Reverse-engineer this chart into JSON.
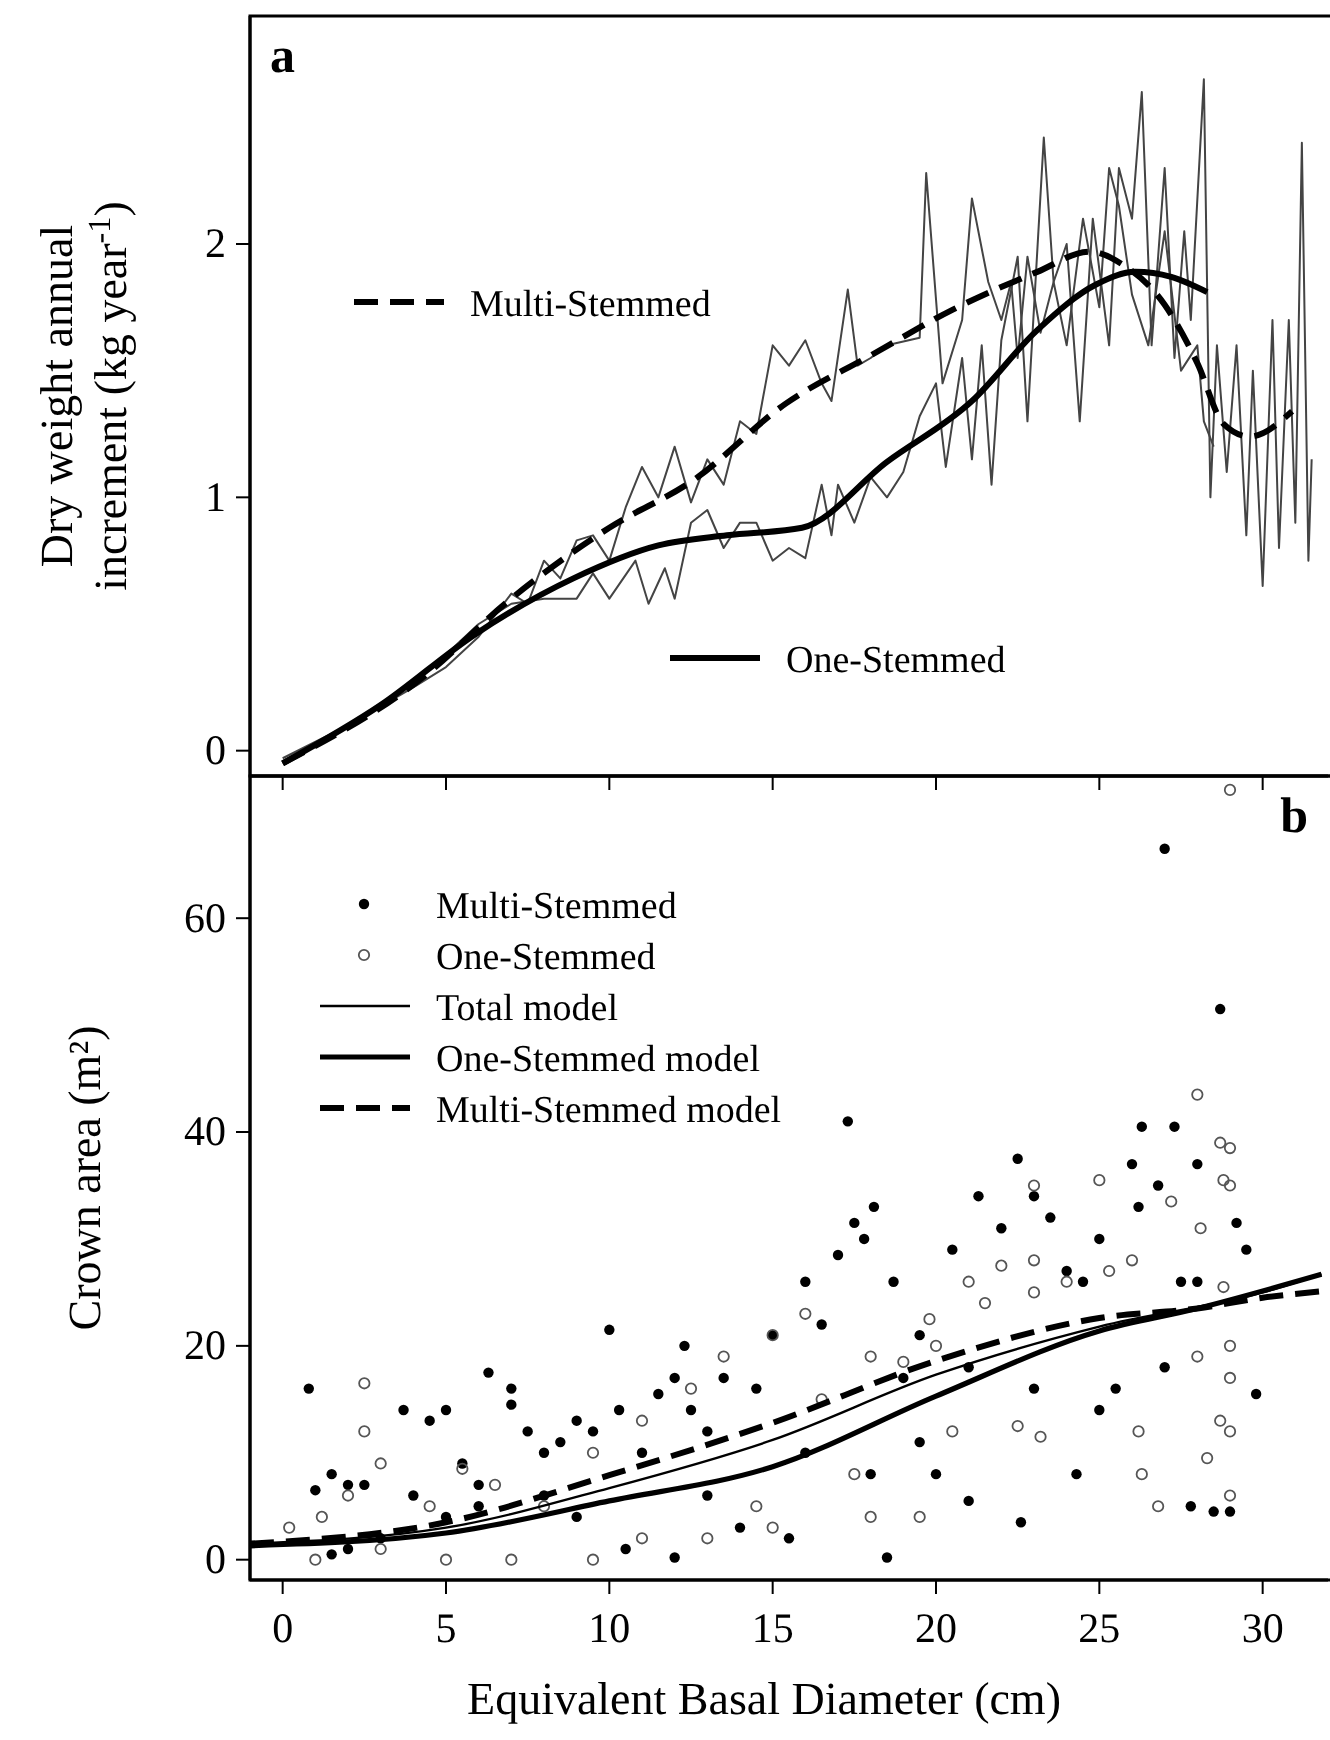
{
  "chart_data": [
    {
      "type": "line",
      "title": "a",
      "ylabel": "Dry weight annual\nincrement (kg  year$^{-1}$)",
      "xlim": [
        -1,
        32
      ],
      "ylim": [
        -0.1,
        2.9
      ],
      "xticks": [
        0,
        5,
        10,
        15,
        20,
        25,
        30
      ],
      "yticks": [
        0,
        1,
        2
      ],
      "tick_labels": "y",
      "grid": false,
      "legend": "left",
      "series": [
        {
          "color": "#444444",
          "x": [
            0,
            2,
            4,
            5,
            6,
            7,
            7.5,
            8,
            8.5,
            9,
            9.5,
            10,
            10.5,
            11,
            11.5,
            12,
            12.5,
            13,
            13.5,
            14,
            14.5,
            15,
            15.5,
            16,
            16.5,
            16.8,
            17.3,
            17.6,
            18,
            18.5,
            19.5,
            19.7,
            20.2,
            20.8,
            21.1,
            21.6,
            22,
            22.3,
            22.5,
            22.8,
            23.2,
            23.6,
            24,
            24.5,
            25,
            25.3,
            25.6,
            26,
            26.5,
            27,
            27.5,
            28,
            28.2,
            28.5
          ],
          "values": [
            -0.03,
            0.1,
            0.25,
            0.33,
            0.45,
            0.62,
            0.58,
            0.75,
            0.68,
            0.83,
            0.85,
            0.75,
            0.96,
            1.12,
            1.0,
            1.2,
            0.98,
            1.15,
            1.05,
            1.3,
            1.25,
            1.6,
            1.52,
            1.62,
            1.45,
            1.38,
            1.82,
            1.52,
            1.55,
            1.6,
            1.63,
            2.28,
            1.45,
            1.7,
            2.18,
            1.85,
            1.7,
            1.85,
            1.55,
            1.95,
            1.65,
            1.85,
            1.6,
            2.1,
            1.75,
            2.3,
            2.15,
            1.8,
            1.6,
            2.05,
            1.5,
            1.6,
            1.3,
            1.2
          ]
        },
        {
          "color": "#444444",
          "x": [
            0,
            2,
            4,
            5,
            6,
            7,
            8,
            9,
            9.5,
            10,
            10.8,
            11.2,
            11.7,
            12,
            12.5,
            13,
            13.5,
            14,
            14.5,
            15,
            15.5,
            16,
            16.5,
            16.8,
            17,
            17.5,
            18,
            18.5,
            19,
            19.5,
            20,
            20.3,
            20.8,
            21.1,
            21.4,
            21.7,
            22,
            22.5,
            22.8,
            23.3,
            23.6,
            24,
            24.4,
            24.8,
            25.3,
            25.6,
            26,
            26.3,
            26.6,
            27,
            27.3,
            27.6,
            27.8,
            28.2,
            28.4,
            28.6,
            28.9,
            29.2,
            29.5,
            29.7,
            30,
            30.3,
            30.5,
            30.8,
            31,
            31.2,
            31.4,
            31.5
          ],
          "values": [
            -0.05,
            0.1,
            0.27,
            0.38,
            0.5,
            0.58,
            0.6,
            0.6,
            0.7,
            0.6,
            0.75,
            0.58,
            0.72,
            0.6,
            0.9,
            0.95,
            0.8,
            0.9,
            0.9,
            0.75,
            0.8,
            0.76,
            1.05,
            0.85,
            1.05,
            0.9,
            1.08,
            1.0,
            1.1,
            1.32,
            1.45,
            1.12,
            1.55,
            1.15,
            1.6,
            1.05,
            1.62,
            1.95,
            1.3,
            2.42,
            1.85,
            2.0,
            1.3,
            2.1,
            1.6,
            2.3,
            2.1,
            2.6,
            1.6,
            2.3,
            1.55,
            2.05,
            1.7,
            2.65,
            1.0,
            1.6,
            1.1,
            1.6,
            0.85,
            1.5,
            0.65,
            1.7,
            0.8,
            1.7,
            0.9,
            2.4,
            0.75,
            1.15
          ]
        },
        {
          "name": "Multi-Stemmed",
          "color": "#000000",
          "line_style": "dashed",
          "x": [
            0,
            4.3,
            6.9,
            10,
            12.6,
            15.4,
            18,
            20.5,
            23.1,
            24.7,
            25.7,
            27,
            28,
            28.8,
            29.6,
            30.9
          ],
          "values": [
            -0.05,
            0.29,
            0.59,
            0.88,
            1.07,
            1.37,
            1.56,
            1.74,
            1.89,
            1.97,
            1.92,
            1.76,
            1.53,
            1.29,
            1.24,
            1.34
          ]
        },
        {
          "name": "One-Stemmed",
          "color": "#000000",
          "line_style": "solid",
          "x": [
            0,
            3,
            5.9,
            8.9,
            11.5,
            13.6,
            15.9,
            18.5,
            21.1,
            23.1,
            24.9,
            26.1,
            27.2,
            28.3
          ],
          "values": [
            -0.05,
            0.18,
            0.46,
            0.68,
            0.81,
            0.85,
            0.88,
            1.14,
            1.38,
            1.66,
            1.84,
            1.89,
            1.87,
            1.81
          ]
        }
      ]
    },
    {
      "type": "scatter",
      "title": "b",
      "xlabel": "Equivalent Basal Diameter (cm)",
      "ylabel": "Crown area (m²)",
      "xlim": [
        -1,
        32
      ],
      "ylim": [
        -1.9,
        73.3
      ],
      "xticks": [
        0,
        5,
        10,
        15,
        20,
        25,
        30
      ],
      "yticks": [
        0,
        20,
        40,
        60
      ],
      "grid": false,
      "legend": "top left",
      "series": [
        {
          "name": "Multi-Stemmed",
          "color": "#000000",
          "marker": "circle",
          "x": [
            0.8,
            1.5,
            1,
            2,
            2.5,
            3.7,
            4.5,
            5,
            4,
            5.5,
            6.3,
            7,
            7,
            7.5,
            6,
            6,
            8,
            8.5,
            9,
            9.5,
            10,
            10.3,
            11,
            11.5,
            12,
            12,
            12.3,
            12.5,
            13,
            13.5,
            14,
            14.5,
            15,
            15.5,
            16,
            16.5,
            17,
            17.3,
            17.5,
            17.8,
            18.1,
            18.5,
            18.7,
            19,
            19.5,
            20,
            20.5,
            21,
            21.3,
            22,
            22.5,
            22.6,
            23,
            23.5,
            24,
            24.3,
            24.5,
            25,
            25.5,
            26,
            26.2,
            26.3,
            26.8,
            27,
            27.3,
            27.5,
            27.8,
            28,
            28.5,
            28.7,
            29,
            29.2,
            29.5,
            29.8,
            2,
            3,
            1.5,
            5,
            8,
            9,
            10.5,
            13,
            16,
            18,
            19.5,
            21,
            23,
            25,
            27,
            28
          ],
          "values": [
            16,
            8,
            6.5,
            7,
            7,
            14,
            13,
            14,
            6,
            9,
            17.5,
            16,
            14.5,
            12,
            5,
            7,
            10,
            11,
            13,
            12,
            21.5,
            14,
            10,
            15.5,
            17,
            0.2,
            20,
            14,
            12,
            17,
            3,
            16,
            21,
            2,
            26,
            22,
            28.5,
            41,
            31.5,
            30,
            33,
            0.2,
            26,
            17,
            21,
            8,
            29,
            5.5,
            34,
            31,
            37.5,
            3.5,
            34,
            32,
            27,
            8,
            26,
            30,
            16,
            37,
            33,
            40.5,
            35,
            66.5,
            40.5,
            26,
            5,
            37,
            4.5,
            51.5,
            4.5,
            31.5,
            29,
            15.5,
            1,
            2,
            0.5,
            4,
            6,
            4,
            1,
            6,
            10,
            8,
            11,
            18,
            16,
            14,
            18,
            26
          ]
        },
        {
          "name": "One-Stemmed",
          "color": "#555555",
          "marker": "circle",
          "x": [
            0.2,
            1.2,
            2.5,
            2.5,
            3,
            2,
            4.5,
            5.5,
            6.5,
            8,
            9.5,
            11,
            12.5,
            13.5,
            14.5,
            15,
            16,
            16.5,
            17.5,
            18,
            19,
            19.8,
            20,
            20.5,
            21,
            21.5,
            22,
            22.5,
            23,
            23,
            23,
            23.2,
            24,
            25,
            25.3,
            26,
            26.2,
            26.3,
            26.8,
            27.2,
            28,
            28.1,
            28,
            28.3,
            28.7,
            28.7,
            28.8,
            28.8,
            29,
            29,
            29,
            29,
            29,
            29,
            29,
            1,
            3,
            5,
            7,
            9.5,
            15,
            18,
            19.5,
            11,
            13
          ],
          "values": [
            3,
            4,
            16.5,
            12,
            9,
            6,
            5,
            8.5,
            7,
            5,
            10,
            13,
            16,
            19,
            5,
            21,
            23,
            15,
            8,
            19,
            18.5,
            22.5,
            20,
            12,
            26,
            24,
            27.5,
            12.5,
            35,
            28,
            25,
            11.5,
            26,
            35.5,
            27,
            28,
            12,
            8,
            5,
            33.5,
            43.5,
            31,
            19,
            9.5,
            13,
            39,
            35.5,
            25.5,
            38.5,
            35,
            20,
            17,
            12,
            6,
            72,
            0,
            1,
            0,
            0,
            0,
            3,
            4,
            4,
            2,
            2
          ]
        },
        {
          "name": "Total model",
          "type": "line",
          "color": "#000000",
          "line_style": "solid",
          "x": [
            -1,
            5,
            10,
            15,
            20,
            25,
            30,
            31.8
          ],
          "values": [
            1.5,
            3,
            6.7,
            11.2,
            17.3,
            21.8,
            25,
            26.7
          ]
        },
        {
          "name": "One-Stemmed model",
          "type": "line",
          "color": "#000000",
          "line_style": "solid",
          "x": [
            -1,
            5,
            10,
            15,
            20,
            25,
            28,
            31.8
          ],
          "values": [
            1.3,
            2.5,
            5.5,
            8.7,
            15.3,
            21.4,
            23.5,
            26.7
          ]
        },
        {
          "name": "Multi-Stemmed model",
          "type": "line",
          "color": "#000000",
          "line_style": "dashed",
          "x": [
            -1,
            5,
            10,
            15,
            20,
            25,
            28,
            30,
            31.8
          ],
          "values": [
            1.5,
            3.5,
            7.9,
            12.8,
            18.6,
            22.6,
            23.5,
            24.5,
            25.1
          ]
        }
      ]
    }
  ]
}
